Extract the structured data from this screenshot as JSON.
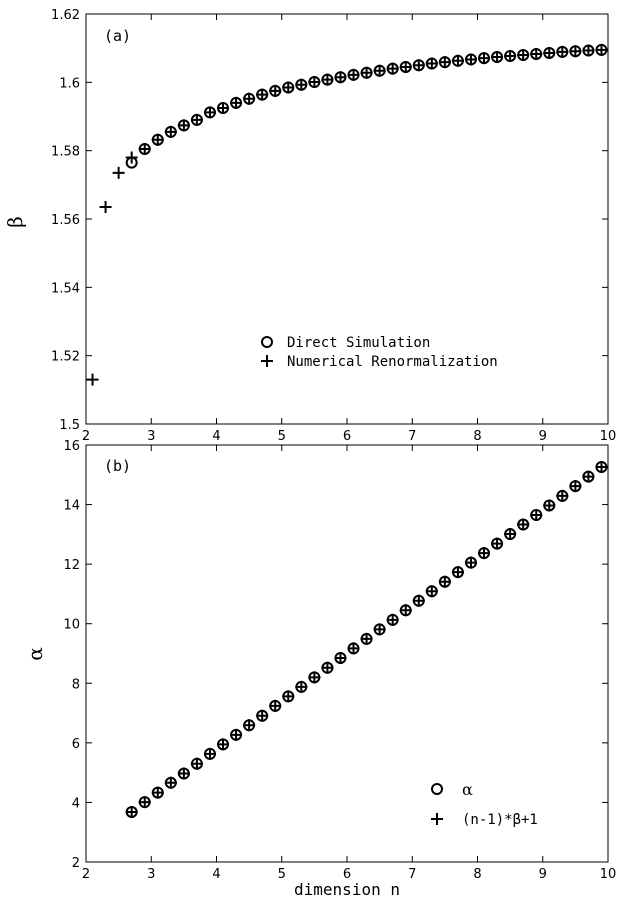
{
  "chart_data": [
    {
      "type": "scatter",
      "panel_label": "(a)",
      "ylabel": "β",
      "xlabel": "",
      "xlim": [
        2,
        10
      ],
      "ylim": [
        1.5,
        1.62
      ],
      "xticks": [
        2,
        3,
        4,
        5,
        6,
        7,
        8,
        9,
        10
      ],
      "yticks": [
        1.5,
        1.52,
        1.54,
        1.56,
        1.58,
        1.6,
        1.62
      ],
      "ytick_labels": [
        "1.5",
        "1.52",
        "1.54",
        "1.56",
        "1.58",
        "1.6",
        "1.62"
      ],
      "legend_position": "bottom-right",
      "series": [
        {
          "name": "Direct Simulation",
          "marker": "circle",
          "x": [
            2.7,
            2.9,
            3.1,
            3.3,
            3.5,
            3.7,
            3.9,
            4.1,
            4.3,
            4.5,
            4.7,
            4.9,
            5.1,
            5.3,
            5.5,
            5.7,
            5.9,
            6.1,
            6.3,
            6.5,
            6.7,
            6.9,
            7.1,
            7.3,
            7.5,
            7.7,
            7.9,
            8.1,
            8.3,
            8.5,
            8.7,
            8.9,
            9.1,
            9.3,
            9.5,
            9.7,
            9.9
          ],
          "y": [
            1.5765,
            1.5805,
            1.5832,
            1.5855,
            1.5874,
            1.589,
            1.5912,
            1.5925,
            1.594,
            1.5952,
            1.5964,
            1.5975,
            1.5985,
            1.5993,
            1.6001,
            1.6008,
            1.6015,
            1.6022,
            1.6028,
            1.6034,
            1.604,
            1.6045,
            1.605,
            1.6055,
            1.6059,
            1.6063,
            1.6067,
            1.6071,
            1.6074,
            1.6077,
            1.608,
            1.6083,
            1.6086,
            1.6089,
            1.6091,
            1.6093,
            1.6095
          ]
        },
        {
          "name": "Numerical Renormalization",
          "marker": "plus",
          "x": [
            2.1,
            2.3,
            2.5,
            2.7,
            2.9,
            3.1,
            3.3,
            3.5,
            3.7,
            3.9,
            4.1,
            4.3,
            4.5,
            4.7,
            4.9,
            5.1,
            5.3,
            5.5,
            5.7,
            5.9,
            6.1,
            6.3,
            6.5,
            6.7,
            6.9,
            7.1,
            7.3,
            7.5,
            7.7,
            7.9,
            8.1,
            8.3,
            8.5,
            8.7,
            8.9,
            9.1,
            9.3,
            9.5,
            9.7,
            9.9
          ],
          "y": [
            1.513,
            1.5635,
            1.5735,
            1.578,
            1.5805,
            1.5832,
            1.5855,
            1.5874,
            1.589,
            1.5912,
            1.5925,
            1.594,
            1.5952,
            1.5964,
            1.5975,
            1.5985,
            1.5993,
            1.6001,
            1.6008,
            1.6015,
            1.6022,
            1.6028,
            1.6034,
            1.604,
            1.6045,
            1.605,
            1.6055,
            1.6059,
            1.6063,
            1.6067,
            1.6071,
            1.6074,
            1.6077,
            1.608,
            1.6083,
            1.6086,
            1.6089,
            1.6091,
            1.6093,
            1.6095
          ]
        }
      ]
    },
    {
      "type": "scatter",
      "panel_label": "(b)",
      "ylabel": "α",
      "xlabel": "dimension n",
      "xlim": [
        2,
        10
      ],
      "ylim": [
        2,
        16
      ],
      "xticks": [
        2,
        3,
        4,
        5,
        6,
        7,
        8,
        9,
        10
      ],
      "yticks": [
        2,
        4,
        6,
        8,
        10,
        12,
        14,
        16
      ],
      "ytick_labels": [
        "2",
        "4",
        "6",
        "8",
        "10",
        "12",
        "14",
        "16"
      ],
      "legend_position": "bottom-right",
      "series": [
        {
          "name": "α",
          "marker": "circle",
          "x": [
            2.7,
            2.9,
            3.1,
            3.3,
            3.5,
            3.7,
            3.9,
            4.1,
            4.3,
            4.5,
            4.7,
            4.9,
            5.1,
            5.3,
            5.5,
            5.7,
            5.9,
            6.1,
            6.3,
            6.5,
            6.7,
            6.9,
            7.1,
            7.3,
            7.5,
            7.7,
            7.9,
            8.1,
            8.3,
            8.5,
            8.7,
            8.9,
            9.1,
            9.3,
            9.5,
            9.7,
            9.9
          ],
          "y": [
            3.68,
            4.01,
            4.33,
            4.66,
            4.97,
            5.3,
            5.63,
            5.95,
            6.27,
            6.59,
            6.91,
            7.24,
            7.56,
            7.88,
            8.2,
            8.52,
            8.85,
            9.17,
            9.49,
            9.81,
            10.13,
            10.45,
            10.77,
            11.09,
            11.41,
            11.73,
            12.05,
            12.37,
            12.69,
            13.01,
            13.33,
            13.65,
            13.97,
            14.29,
            14.62,
            14.94,
            15.26
          ]
        },
        {
          "name": "(n-1)*β+1",
          "marker": "plus",
          "x": [
            2.7,
            2.9,
            3.1,
            3.3,
            3.5,
            3.7,
            3.9,
            4.1,
            4.3,
            4.5,
            4.7,
            4.9,
            5.1,
            5.3,
            5.5,
            5.7,
            5.9,
            6.1,
            6.3,
            6.5,
            6.7,
            6.9,
            7.1,
            7.3,
            7.5,
            7.7,
            7.9,
            8.1,
            8.3,
            8.5,
            8.7,
            8.9,
            9.1,
            9.3,
            9.5,
            9.7,
            9.9
          ],
          "y": [
            3.68,
            4.01,
            4.33,
            4.66,
            4.97,
            5.3,
            5.63,
            5.95,
            6.27,
            6.59,
            6.91,
            7.24,
            7.56,
            7.88,
            8.2,
            8.52,
            8.85,
            9.17,
            9.49,
            9.81,
            10.13,
            10.45,
            10.77,
            11.09,
            11.41,
            11.73,
            12.05,
            12.37,
            12.69,
            13.01,
            13.33,
            13.65,
            13.97,
            14.29,
            14.62,
            14.94,
            15.26
          ]
        }
      ]
    }
  ]
}
